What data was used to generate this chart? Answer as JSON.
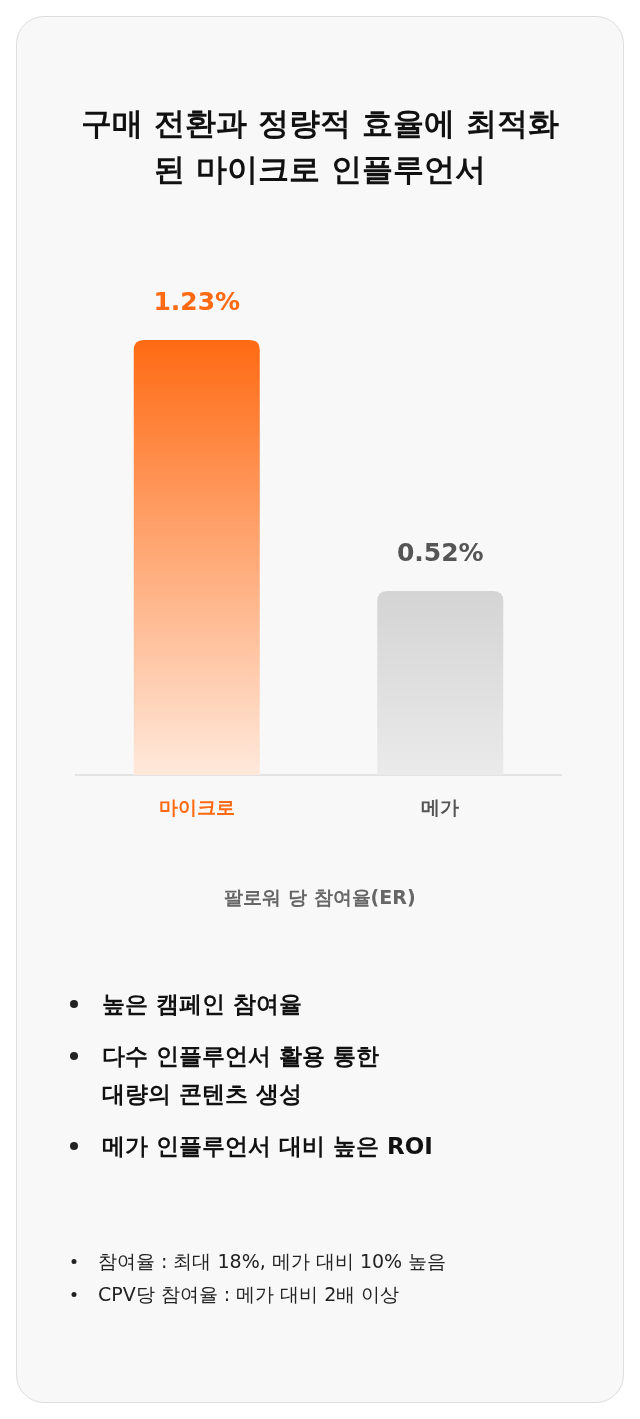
{
  "chart_data": {
    "type": "bar",
    "title": "구매 전환과 정량적 효율에 최적화된 마이크로 인플루언서",
    "categories": [
      "마이크로",
      "메가"
    ],
    "values": [
      1.23,
      0.52
    ],
    "colors": [
      "#ff6a13",
      "#d4d4d4"
    ],
    "value_labels": [
      "1.23%",
      "0.52%"
    ],
    "xlabel": "팔로워 당 참여율(ER)",
    "annotations": [
      "높은 캠페인 참여율",
      "다수 인플루언서 활용 통한 대량의 콘텐츠 생성",
      "메가 인플루언서 대비 높은 ROI",
      "참여율 : 최대 18%, 메가 대비 10% 높음",
      "CPV당 참여율 : 메가 대비 2배 이상"
    ]
  }
}
